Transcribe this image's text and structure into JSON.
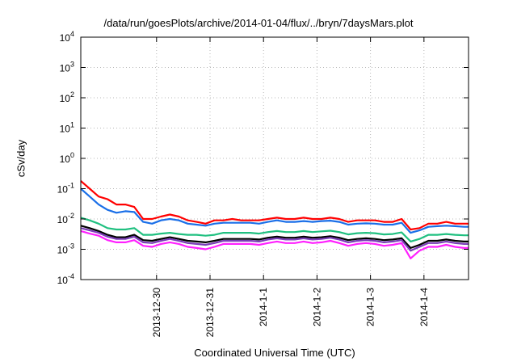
{
  "chart_data": {
    "type": "line",
    "title": "/data/run/goesPlots/archive/2014-01-04/flux/../bryn/7daysMars.plot",
    "xlabel": "Coordinated Universal Time (UTC)",
    "ylabel": "cSv/day",
    "yscale": "log",
    "ylim": [
      0.0001,
      10000
    ],
    "yticks": [
      {
        "v": 0.0001,
        "mant": "10",
        "exp": "-4"
      },
      {
        "v": 0.001,
        "mant": "10",
        "exp": "-3"
      },
      {
        "v": 0.01,
        "mant": "10",
        "exp": "-2"
      },
      {
        "v": 0.1,
        "mant": "10",
        "exp": "-1"
      },
      {
        "v": 1,
        "mant": "10",
        "exp": "0"
      },
      {
        "v": 10,
        "mant": "10",
        "exp": "1"
      },
      {
        "v": 100,
        "mant": "10",
        "exp": "2"
      },
      {
        "v": 1000,
        "mant": "10",
        "exp": "3"
      },
      {
        "v": 10000,
        "mant": "10",
        "exp": "4"
      }
    ],
    "xlim": [
      "2013-12-28T14:00",
      "2014-01-04T20:00"
    ],
    "xticks": [
      {
        "date": "2013-12-30T00:00",
        "label": "2013-12-30"
      },
      {
        "date": "2013-12-31T00:00",
        "label": "2013-12-31"
      },
      {
        "date": "2014-01-01T00:00",
        "label": "2014-1-1"
      },
      {
        "date": "2014-01-02T00:00",
        "label": "2014-1-2"
      },
      {
        "date": "2014-01-03T00:00",
        "label": "2014-1-3"
      },
      {
        "date": "2014-01-04T00:00",
        "label": "2014-1-4"
      }
    ],
    "grid": true,
    "x": [
      "2013-12-28T14:00",
      "2013-12-28T18:00",
      "2013-12-28T22:00",
      "2013-12-29T02:00",
      "2013-12-29T06:00",
      "2013-12-29T10:00",
      "2013-12-29T14:00",
      "2013-12-29T18:00",
      "2013-12-29T22:00",
      "2013-12-30T02:00",
      "2013-12-30T06:00",
      "2013-12-30T10:00",
      "2013-12-30T14:00",
      "2013-12-30T18:00",
      "2013-12-30T22:00",
      "2013-12-31T02:00",
      "2013-12-31T06:00",
      "2013-12-31T10:00",
      "2013-12-31T14:00",
      "2013-12-31T18:00",
      "2013-12-31T22:00",
      "2014-01-01T02:00",
      "2014-01-01T06:00",
      "2014-01-01T10:00",
      "2014-01-01T14:00",
      "2014-01-01T18:00",
      "2014-01-01T22:00",
      "2014-01-02T02:00",
      "2014-01-02T06:00",
      "2014-01-02T10:00",
      "2014-01-02T14:00",
      "2014-01-02T18:00",
      "2014-01-02T22:00",
      "2014-01-03T02:00",
      "2014-01-03T06:00",
      "2014-01-03T10:00",
      "2014-01-03T14:00",
      "2014-01-03T18:00",
      "2014-01-03T22:00",
      "2014-01-04T02:00",
      "2014-01-04T06:00",
      "2014-01-04T10:00",
      "2014-01-04T14:00",
      "2014-01-04T18:00",
      "2014-01-04T20:00"
    ],
    "series": [
      {
        "color": "#ff0000",
        "values": [
          0.18,
          0.1,
          0.055,
          0.045,
          0.03,
          0.03,
          0.025,
          0.01,
          0.01,
          0.012,
          0.014,
          0.012,
          0.009,
          0.008,
          0.007,
          0.009,
          0.009,
          0.01,
          0.009,
          0.009,
          0.009,
          0.01,
          0.011,
          0.01,
          0.01,
          0.011,
          0.01,
          0.01,
          0.011,
          0.01,
          0.008,
          0.009,
          0.009,
          0.009,
          0.008,
          0.008,
          0.01,
          0.0045,
          0.005,
          0.007,
          0.007,
          0.008,
          0.007,
          0.007,
          0.007
        ]
      },
      {
        "color": "#1a6fe8",
        "values": [
          0.1,
          0.055,
          0.03,
          0.02,
          0.016,
          0.018,
          0.017,
          0.008,
          0.007,
          0.009,
          0.01,
          0.009,
          0.007,
          0.0065,
          0.006,
          0.007,
          0.0075,
          0.0075,
          0.0075,
          0.0075,
          0.007,
          0.008,
          0.009,
          0.008,
          0.008,
          0.0085,
          0.008,
          0.0085,
          0.0088,
          0.008,
          0.0065,
          0.007,
          0.0072,
          0.007,
          0.0065,
          0.0065,
          0.0075,
          0.0035,
          0.0042,
          0.0055,
          0.0058,
          0.006,
          0.0058,
          0.0055,
          0.0055
        ]
      },
      {
        "color": "#20c080",
        "values": [
          0.011,
          0.009,
          0.007,
          0.005,
          0.0045,
          0.0045,
          0.005,
          0.003,
          0.003,
          0.0033,
          0.0035,
          0.0032,
          0.003,
          0.003,
          0.0028,
          0.003,
          0.0035,
          0.0035,
          0.0035,
          0.0035,
          0.0033,
          0.0037,
          0.004,
          0.0037,
          0.0037,
          0.004,
          0.0037,
          0.0039,
          0.0041,
          0.0037,
          0.0031,
          0.0034,
          0.0035,
          0.0034,
          0.0031,
          0.0032,
          0.0036,
          0.0018,
          0.0022,
          0.003,
          0.003,
          0.0032,
          0.003,
          0.0029,
          0.0029
        ]
      },
      {
        "color": "#000000",
        "values": [
          0.006,
          0.005,
          0.004,
          0.003,
          0.0025,
          0.0025,
          0.003,
          0.002,
          0.0019,
          0.0022,
          0.0025,
          0.0022,
          0.0019,
          0.0018,
          0.0017,
          0.0019,
          0.0022,
          0.0022,
          0.0022,
          0.0022,
          0.0021,
          0.0024,
          0.0026,
          0.0024,
          0.0024,
          0.0026,
          0.0024,
          0.0025,
          0.0027,
          0.0024,
          0.002,
          0.0022,
          0.0023,
          0.0022,
          0.002,
          0.0021,
          0.0023,
          0.0011,
          0.0014,
          0.0019,
          0.0019,
          0.0021,
          0.0019,
          0.0018,
          0.0018
        ]
      },
      {
        "color": "#7a3db8",
        "values": [
          0.005,
          0.0042,
          0.0035,
          0.0026,
          0.0022,
          0.0022,
          0.0026,
          0.0017,
          0.0016,
          0.0019,
          0.0022,
          0.0019,
          0.0016,
          0.0015,
          0.0014,
          0.0016,
          0.0019,
          0.0019,
          0.0019,
          0.0019,
          0.0018,
          0.0021,
          0.0023,
          0.0021,
          0.0021,
          0.0023,
          0.0021,
          0.0022,
          0.0024,
          0.0021,
          0.0017,
          0.0019,
          0.002,
          0.0019,
          0.0017,
          0.0018,
          0.002,
          0.0009,
          0.0012,
          0.0016,
          0.0016,
          0.0018,
          0.0016,
          0.0015,
          0.0015
        ]
      },
      {
        "color": "#ff20ff",
        "values": [
          0.004,
          0.0033,
          0.0028,
          0.002,
          0.0017,
          0.0017,
          0.002,
          0.0013,
          0.0012,
          0.0015,
          0.0017,
          0.0015,
          0.0012,
          0.0011,
          0.001,
          0.0012,
          0.0015,
          0.0015,
          0.0015,
          0.0015,
          0.0014,
          0.0016,
          0.0018,
          0.0016,
          0.0016,
          0.0018,
          0.0016,
          0.0017,
          0.0019,
          0.0016,
          0.0013,
          0.0015,
          0.0016,
          0.0015,
          0.0013,
          0.0014,
          0.0016,
          0.0005,
          0.0009,
          0.0012,
          0.0012,
          0.0014,
          0.0012,
          0.0011,
          0.0011
        ]
      }
    ]
  }
}
